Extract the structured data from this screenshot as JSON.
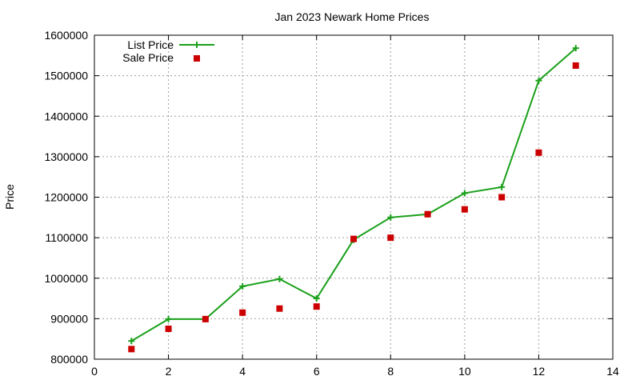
{
  "chart_data": {
    "type": "line",
    "title": "Jan 2023 Newark Home Prices",
    "xlabel": "",
    "ylabel": "Price",
    "xlim": [
      0,
      14
    ],
    "ylim": [
      800000,
      1600000
    ],
    "x_ticks": [
      0,
      2,
      4,
      6,
      8,
      10,
      12,
      14
    ],
    "y_ticks": [
      800000,
      900000,
      1000000,
      1100000,
      1200000,
      1300000,
      1400000,
      1500000,
      1600000
    ],
    "grid": true,
    "legend_position": "top-left",
    "series": [
      {
        "name": "List Price",
        "style": "line-points",
        "marker": "plus",
        "color": "#1aa01a",
        "x": [
          1,
          2,
          3,
          4,
          5,
          6,
          7,
          8,
          9,
          10,
          11,
          12,
          13
        ],
        "y": [
          845000,
          899000,
          899000,
          980000,
          998000,
          950000,
          1095000,
          1150000,
          1158000,
          1210000,
          1225000,
          1488000,
          1568000
        ]
      },
      {
        "name": "Sale Price",
        "style": "points",
        "marker": "square",
        "color": "#cc0000",
        "x": [
          1,
          2,
          3,
          4,
          5,
          6,
          7,
          8,
          9,
          10,
          11,
          12,
          13
        ],
        "y": [
          825000,
          875000,
          899000,
          915000,
          925000,
          930000,
          1097000,
          1100000,
          1158000,
          1170000,
          1200000,
          1310000,
          1525000
        ]
      }
    ]
  }
}
